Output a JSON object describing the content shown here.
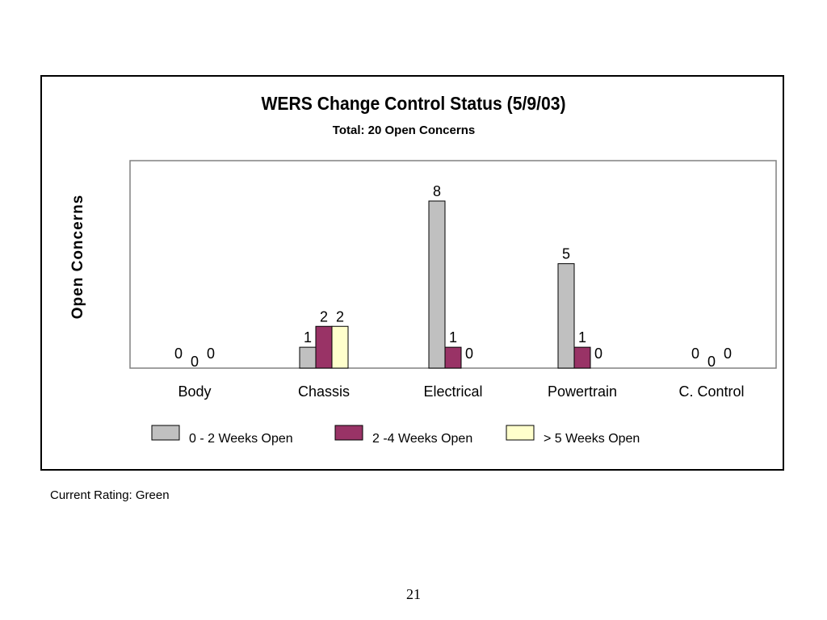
{
  "chart_data": {
    "type": "bar",
    "title": "WERS Change Control Status (5/9/03)",
    "subtitle": "Total:  20 Open Concerns",
    "xlabel": "",
    "ylabel": "Open Concerns",
    "categories": [
      "Body",
      "Chassis",
      "Electrical",
      "Powertrain",
      "C. Control"
    ],
    "series": [
      {
        "name": "0 - 2 Weeks Open",
        "values": [
          0,
          1,
          8,
          5,
          0
        ],
        "color": "#c0c0c0"
      },
      {
        "name": "2 -4 Weeks Open",
        "values": [
          0,
          2,
          1,
          1,
          0
        ],
        "color": "#993366"
      },
      {
        "name": "> 5 Weeks Open",
        "values": [
          0,
          2,
          0,
          0,
          0
        ],
        "color": "#ffffcc"
      }
    ],
    "data_labels": [
      [
        "0",
        "1",
        "8",
        "5",
        "0"
      ],
      [
        "0",
        "2",
        "1",
        "1",
        "0"
      ],
      [
        "0",
        "2",
        "0",
        "0",
        "0"
      ]
    ],
    "ylim": [
      0,
      10
    ],
    "grid": false,
    "legend": "bottom"
  },
  "footer": {
    "rating": "Current Rating:  Green"
  },
  "page_number": "21"
}
